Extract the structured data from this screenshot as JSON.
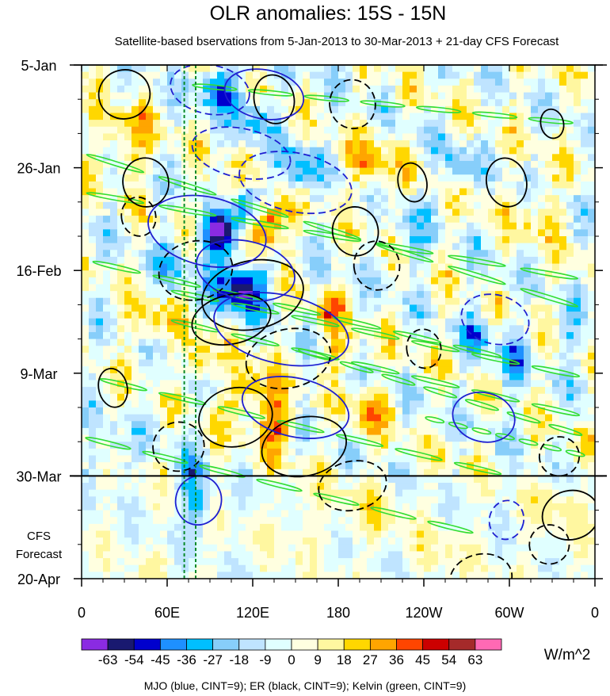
{
  "chart_data": {
    "type": "heatmap",
    "title": "OLR anomalies: 15S - 15N",
    "subtitle": "Satellite-based bservations from 5-Jan-2013 to 30-Mar-2013 + 21-day CFS Forecast",
    "x_tick_labels": [
      "0",
      "60E",
      "120E",
      "180",
      "120W",
      "60W",
      "0"
    ],
    "x_ticks_lon": [
      0,
      60,
      120,
      180,
      240,
      300,
      360
    ],
    "xlim": [
      0,
      360
    ],
    "y_tick_labels": [
      "5-Jan",
      "26-Jan",
      "16-Feb",
      "9-Mar",
      "30-Mar",
      "20-Apr"
    ],
    "y_ticks_day": [
      0,
      21,
      42,
      63,
      84,
      105
    ],
    "ylim": [
      0,
      105
    ],
    "observation_end_day": 84,
    "forecast_label_line1": "CFS",
    "forecast_label_line2": "Forecast",
    "reference_lines_lon": [
      72,
      80
    ],
    "colorbar": {
      "levels": [
        "-63",
        "-54",
        "-45",
        "-36",
        "-27",
        "-18",
        "-9",
        "0",
        "9",
        "18",
        "27",
        "36",
        "45",
        "54",
        "63"
      ],
      "colors": [
        "#8a2be2",
        "#191970",
        "#0000cd",
        "#1e90ff",
        "#00bfff",
        "#87cefa",
        "#bfe4ff",
        "#e0ffff",
        "#ffffe0",
        "#fff7a0",
        "#ffd700",
        "#ffa500",
        "#ff4500",
        "#cc0000",
        "#a52a2a",
        "#ff69b4"
      ],
      "units": "W/m^2"
    },
    "footnote": "MJO (blue, CINT=9); ER (black, CINT=9); Kelvin (green, CINT=9)",
    "contour_colors": {
      "mjo": "#1f1fd0",
      "er": "#000000",
      "kelvin": "#33dd33"
    },
    "mjo_contours": [
      {
        "lon": 90,
        "day": 5,
        "a": 28,
        "b": 5,
        "slope": 1.5,
        "sign": -1
      },
      {
        "lon": 128,
        "day": 6,
        "a": 28,
        "b": 5,
        "slope": 1.5,
        "sign": 1
      },
      {
        "lon": 112,
        "day": 18,
        "a": 35,
        "b": 5,
        "slope": 1.4,
        "sign": -1
      },
      {
        "lon": 150,
        "day": 24,
        "a": 40,
        "b": 6,
        "slope": 1.4,
        "sign": -1
      },
      {
        "lon": 88,
        "day": 34,
        "a": 42,
        "b": 7,
        "slope": 1.3,
        "sign": 1
      },
      {
        "lon": 115,
        "day": 42,
        "a": 35,
        "b": 6,
        "slope": 1.3,
        "sign": 1
      },
      {
        "lon": 140,
        "day": 54,
        "a": 48,
        "b": 7,
        "slope": 1.3,
        "sign": 1
      },
      {
        "lon": 150,
        "day": 70,
        "a": 38,
        "b": 6,
        "slope": 1.3,
        "sign": 1
      },
      {
        "lon": 282,
        "day": 72,
        "a": 22,
        "b": 5,
        "slope": 1.2,
        "sign": 1
      },
      {
        "lon": 82,
        "day": 89,
        "a": 16,
        "b": 5,
        "slope": 1.2,
        "sign": 1
      },
      {
        "lon": 290,
        "day": 52,
        "a": 24,
        "b": 5,
        "slope": 1.2,
        "sign": -1
      },
      {
        "lon": 298,
        "day": 93,
        "a": 12,
        "b": 4,
        "slope": 1.2,
        "sign": -1
      }
    ],
    "er_contours": [
      {
        "lon": 30,
        "day": 6,
        "a": 18,
        "b": 5,
        "slope": -1.3,
        "sign": 1
      },
      {
        "lon": 135,
        "day": 7,
        "a": 14,
        "b": 5,
        "slope": -1.3,
        "sign": 1
      },
      {
        "lon": 190,
        "day": 8,
        "a": 16,
        "b": 5,
        "slope": -1.3,
        "sign": -1
      },
      {
        "lon": 330,
        "day": 12,
        "a": 8,
        "b": 3,
        "slope": -1.3,
        "sign": 1
      },
      {
        "lon": 45,
        "day": 24,
        "a": 16,
        "b": 5,
        "slope": -1.3,
        "sign": 1
      },
      {
        "lon": 40,
        "day": 31,
        "a": 12,
        "b": 4,
        "slope": -1.3,
        "sign": -1
      },
      {
        "lon": 232,
        "day": 24,
        "a": 10,
        "b": 4,
        "slope": -1.3,
        "sign": 1
      },
      {
        "lon": 298,
        "day": 24,
        "a": 14,
        "b": 5,
        "slope": -1.3,
        "sign": 1
      },
      {
        "lon": 192,
        "day": 34,
        "a": 16,
        "b": 5,
        "slope": -1.3,
        "sign": 1
      },
      {
        "lon": 207,
        "day": 41,
        "a": 16,
        "b": 5,
        "slope": -1.3,
        "sign": -1
      },
      {
        "lon": 80,
        "day": 42,
        "a": 26,
        "b": 6,
        "slope": -1.3,
        "sign": -1
      },
      {
        "lon": 120,
        "day": 47,
        "a": 36,
        "b": 7,
        "slope": -1.3,
        "sign": 1
      },
      {
        "lon": 105,
        "day": 52,
        "a": 28,
        "b": 5,
        "slope": -1.3,
        "sign": 1
      },
      {
        "lon": 145,
        "day": 60,
        "a": 30,
        "b": 6,
        "slope": -1.3,
        "sign": -1
      },
      {
        "lon": 240,
        "day": 58,
        "a": 12,
        "b": 4,
        "slope": -1.3,
        "sign": -1
      },
      {
        "lon": 22,
        "day": 66,
        "a": 10,
        "b": 4,
        "slope": -1.3,
        "sign": 1
      },
      {
        "lon": 108,
        "day": 72,
        "a": 26,
        "b": 6,
        "slope": -1.3,
        "sign": 1
      },
      {
        "lon": 68,
        "day": 78,
        "a": 18,
        "b": 5,
        "slope": -1.3,
        "sign": -1
      },
      {
        "lon": 156,
        "day": 78,
        "a": 30,
        "b": 6,
        "slope": -1.3,
        "sign": 1
      },
      {
        "lon": 190,
        "day": 86,
        "a": 24,
        "b": 5,
        "slope": -1.3,
        "sign": -1
      },
      {
        "lon": 335,
        "day": 80,
        "a": 14,
        "b": 4,
        "slope": -1.3,
        "sign": -1
      },
      {
        "lon": 343,
        "day": 92,
        "a": 20,
        "b": 5,
        "slope": -1.3,
        "sign": 1
      },
      {
        "lon": 328,
        "day": 98,
        "a": 14,
        "b": 4,
        "slope": -1.3,
        "sign": -1
      },
      {
        "lon": 280,
        "day": 105,
        "a": 22,
        "b": 5,
        "slope": -1.3,
        "sign": -1
      }
    ],
    "kelvin_bands": [
      {
        "lon0": 75,
        "day0": 4,
        "lon1": 350,
        "day1": 12
      },
      {
        "lon0": 0,
        "day0": 18,
        "lon1": 355,
        "day1": 50
      },
      {
        "lon0": 0,
        "day0": 26,
        "lon1": 355,
        "day1": 44
      },
      {
        "lon0": 5,
        "day0": 40,
        "lon1": 300,
        "day1": 60
      },
      {
        "lon0": 60,
        "day0": 46,
        "lon1": 355,
        "day1": 64
      },
      {
        "lon0": 60,
        "day0": 52,
        "lon1": 355,
        "day1": 72
      },
      {
        "lon0": 150,
        "day0": 58,
        "lon1": 355,
        "day1": 76
      },
      {
        "lon0": 10,
        "day0": 64,
        "lon1": 300,
        "day1": 84
      },
      {
        "lon0": 0,
        "day0": 76,
        "lon1": 280,
        "day1": 96
      },
      {
        "lon0": 240,
        "day0": 72,
        "lon1": 355,
        "day1": 80
      }
    ]
  }
}
